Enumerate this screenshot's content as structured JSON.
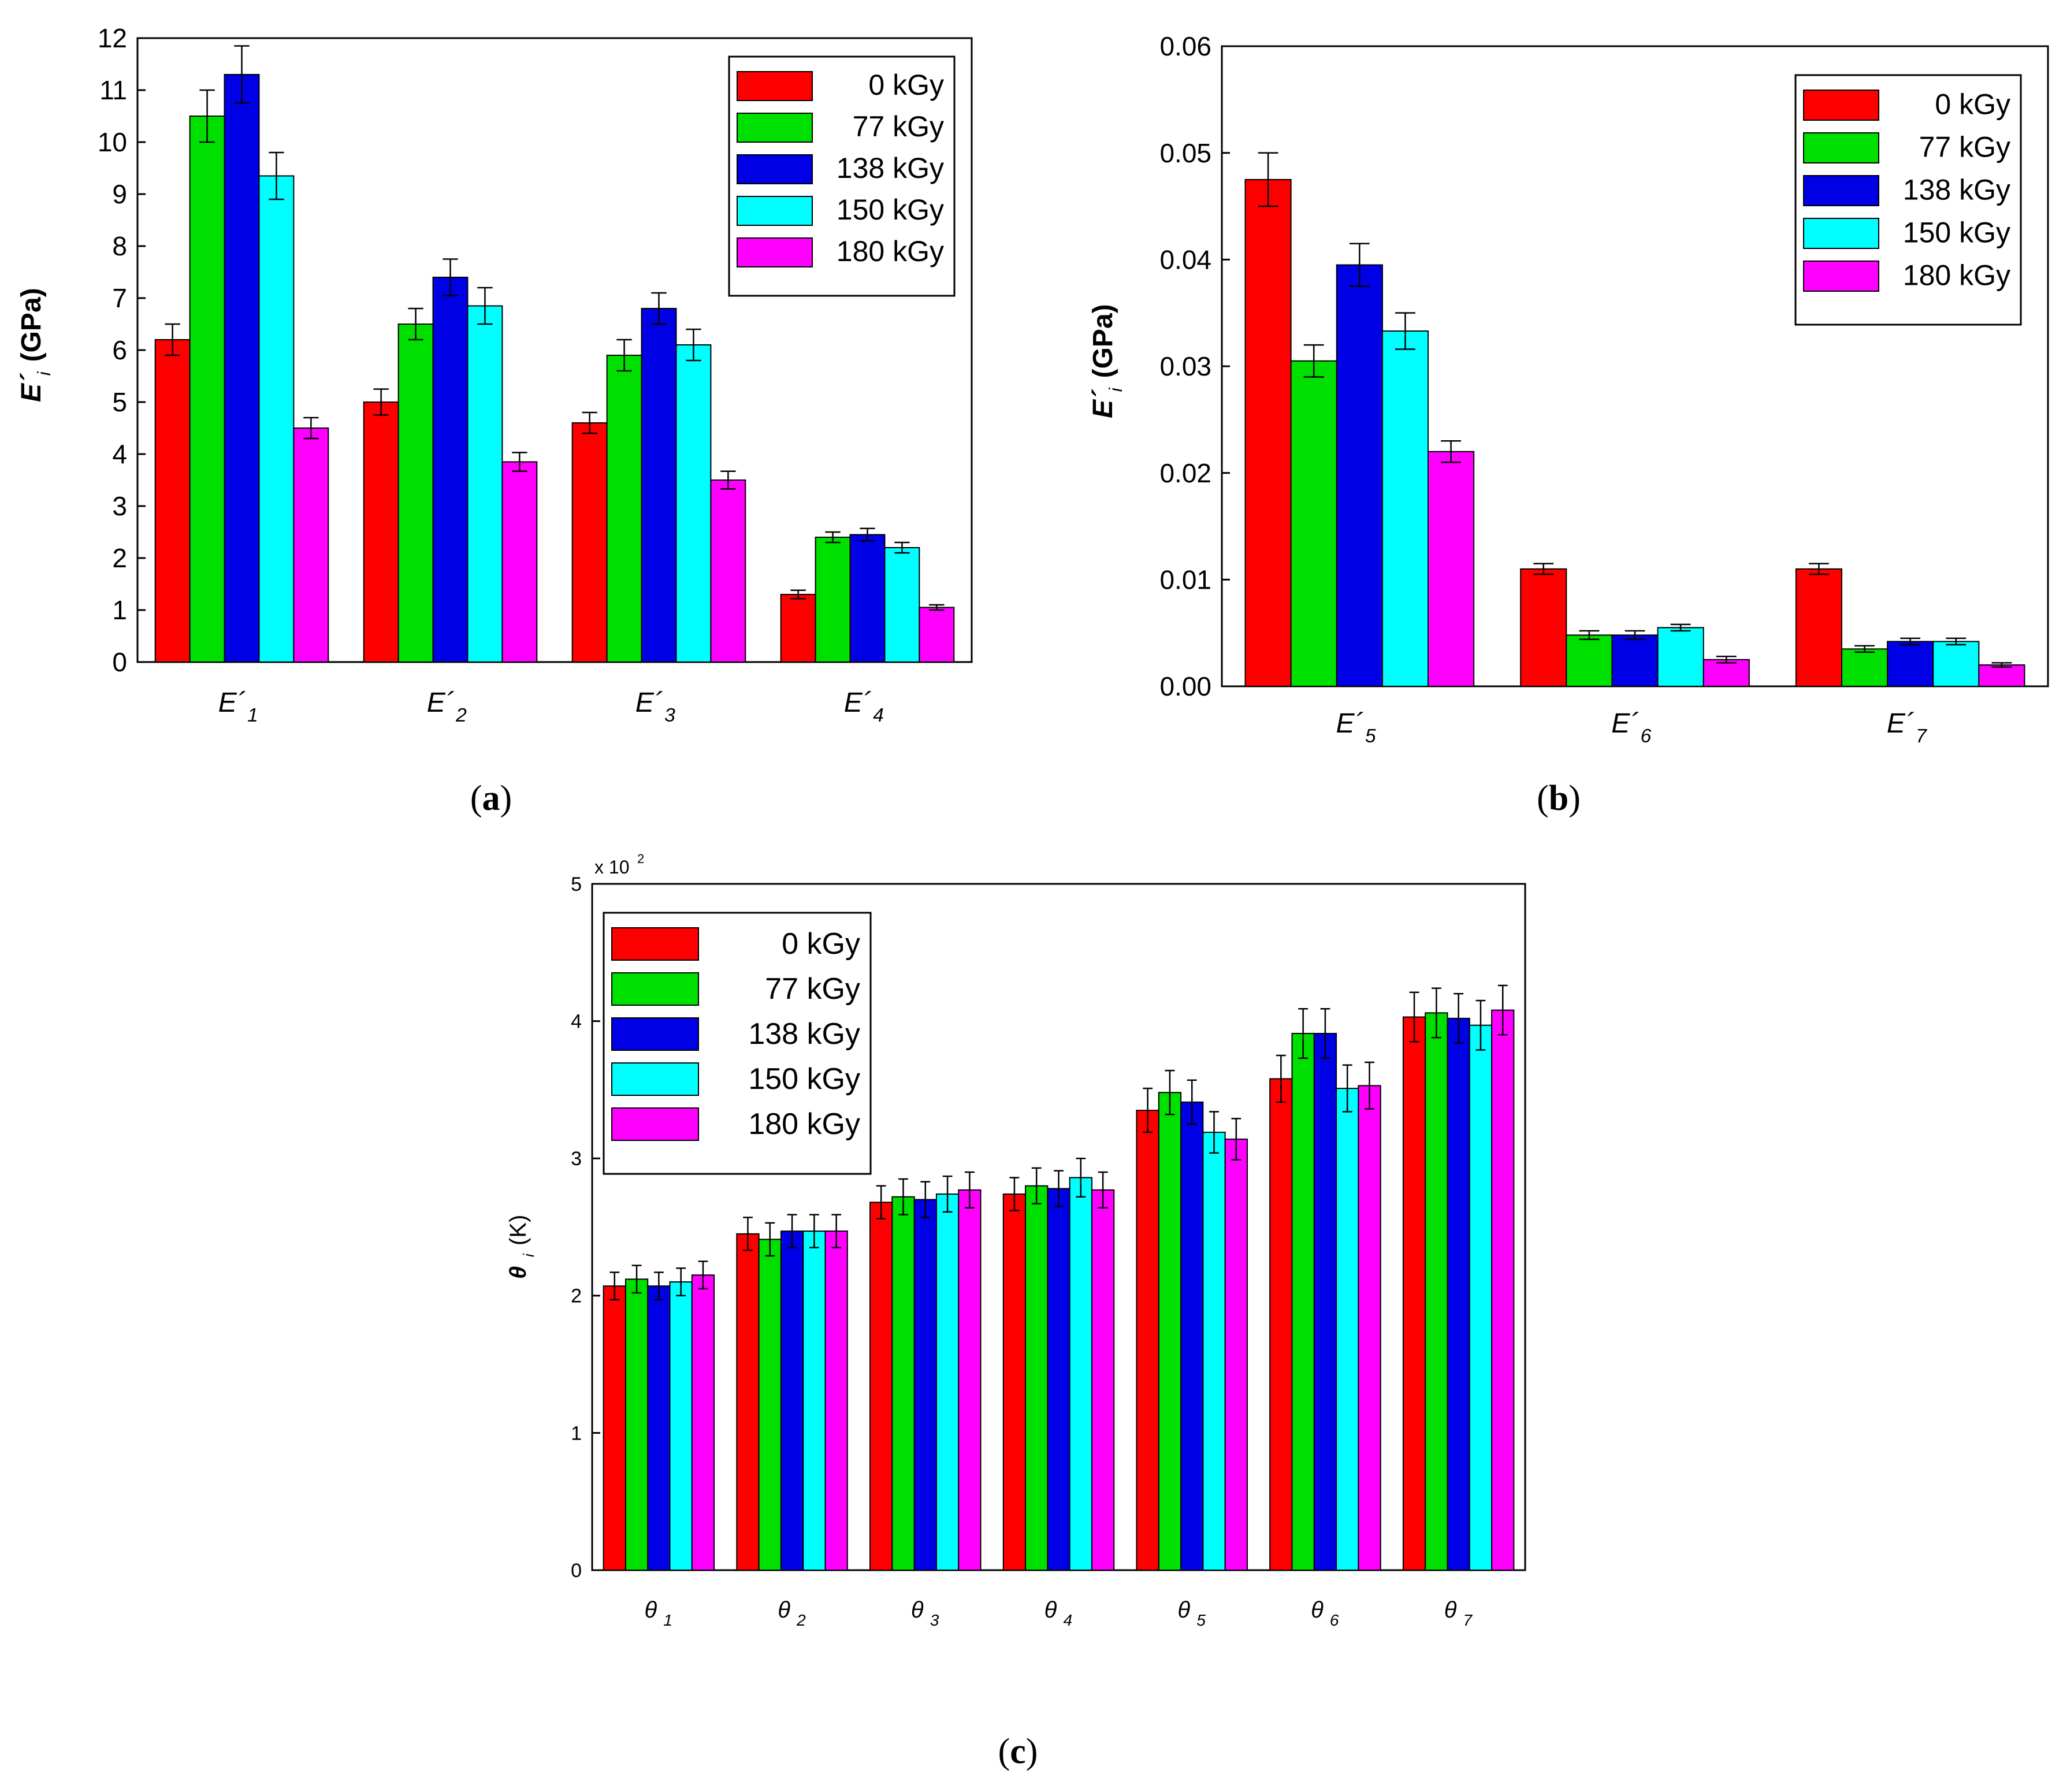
{
  "colors": {
    "series": [
      "#ff0000",
      "#00e000",
      "#0000e6",
      "#00ffff",
      "#ff00ff"
    ],
    "axis": "#000000",
    "error_bar": "#000000"
  },
  "legend_labels": [
    "0 kGy",
    "77 kGy",
    "138 kGy",
    "150 kGy",
    "180 kGy"
  ],
  "chart_data": [
    {
      "id": "a",
      "type": "bar",
      "panel_label": "a",
      "title": "",
      "ylabel_main": "E´",
      "ylabel_sub": "i",
      "ylabel_unit": "(GPa)",
      "xlabel": "",
      "ylim": [
        0,
        12
      ],
      "yticks": [
        "0",
        "1",
        "2",
        "3",
        "4",
        "5",
        "6",
        "7",
        "8",
        "9",
        "10",
        "11",
        "12"
      ],
      "categories": [
        {
          "main": "E´",
          "sub": "1"
        },
        {
          "main": "E´",
          "sub": "2"
        },
        {
          "main": "E´",
          "sub": "3"
        },
        {
          "main": "E´",
          "sub": "4"
        }
      ],
      "legend_position": "top-right",
      "series": [
        {
          "name": "0 kGy",
          "values": [
            6.2,
            5.0,
            4.6,
            1.3
          ],
          "errors": [
            0.3,
            0.25,
            0.2,
            0.08
          ]
        },
        {
          "name": "77 kGy",
          "values": [
            10.5,
            6.5,
            5.9,
            2.4
          ],
          "errors": [
            0.5,
            0.3,
            0.3,
            0.1
          ]
        },
        {
          "name": "138 kGy",
          "values": [
            11.3,
            7.4,
            6.8,
            2.45
          ],
          "errors": [
            0.55,
            0.35,
            0.3,
            0.12
          ]
        },
        {
          "name": "150 kGy",
          "values": [
            9.35,
            6.85,
            6.1,
            2.2
          ],
          "errors": [
            0.45,
            0.35,
            0.3,
            0.1
          ]
        },
        {
          "name": "180 kGy",
          "values": [
            4.5,
            3.85,
            3.5,
            1.05
          ],
          "errors": [
            0.2,
            0.18,
            0.17,
            0.05
          ]
        }
      ]
    },
    {
      "id": "b",
      "type": "bar",
      "panel_label": "b",
      "title": "",
      "ylabel_main": "E´",
      "ylabel_sub": "i",
      "ylabel_unit": "(GPa)",
      "xlabel": "",
      "ylim": [
        0,
        0.06
      ],
      "yticks": [
        "0.00",
        "0.01",
        "0.02",
        "0.03",
        "0.04",
        "0.05",
        "0.06"
      ],
      "categories": [
        {
          "main": "E´",
          "sub": "5"
        },
        {
          "main": "E´",
          "sub": "6"
        },
        {
          "main": "E´",
          "sub": "7"
        }
      ],
      "legend_position": "top-right",
      "series": [
        {
          "name": "0 kGy",
          "values": [
            0.0475,
            0.011,
            0.011
          ],
          "errors": [
            0.0025,
            0.0005,
            0.0005
          ]
        },
        {
          "name": "77 kGy",
          "values": [
            0.0305,
            0.0048,
            0.0035
          ],
          "errors": [
            0.0015,
            0.0004,
            0.0003
          ]
        },
        {
          "name": "138 kGy",
          "values": [
            0.0395,
            0.0048,
            0.0042
          ],
          "errors": [
            0.002,
            0.0004,
            0.0003
          ]
        },
        {
          "name": "150 kGy",
          "values": [
            0.0333,
            0.0055,
            0.0042
          ],
          "errors": [
            0.0017,
            0.0003,
            0.0003
          ]
        },
        {
          "name": "180 kGy",
          "values": [
            0.022,
            0.0025,
            0.002
          ],
          "errors": [
            0.001,
            0.0003,
            0.0002
          ]
        }
      ]
    },
    {
      "id": "c",
      "type": "bar",
      "panel_label": "c",
      "title": "",
      "scale_label": "x 10",
      "scale_exponent": "2",
      "ylabel_main": "θ",
      "ylabel_sub": "i",
      "ylabel_unit": "(K)",
      "xlabel": "",
      "ylim": [
        0,
        5
      ],
      "yticks": [
        "0",
        "1",
        "2",
        "3",
        "4",
        "5"
      ],
      "categories": [
        {
          "main": "θ",
          "sub": "1"
        },
        {
          "main": "θ",
          "sub": "2"
        },
        {
          "main": "θ",
          "sub": "3"
        },
        {
          "main": "θ",
          "sub": "4"
        },
        {
          "main": "θ",
          "sub": "5"
        },
        {
          "main": "θ",
          "sub": "6"
        },
        {
          "main": "θ",
          "sub": "7"
        }
      ],
      "legend_position": "top-left",
      "series": [
        {
          "name": "0 kGy",
          "values": [
            2.07,
            2.45,
            2.68,
            2.74,
            3.35,
            3.58,
            4.03
          ],
          "errors": [
            0.1,
            0.12,
            0.12,
            0.12,
            0.16,
            0.17,
            0.18
          ]
        },
        {
          "name": "77 kGy",
          "values": [
            2.12,
            2.41,
            2.72,
            2.8,
            3.48,
            3.91,
            4.06
          ],
          "errors": [
            0.1,
            0.12,
            0.13,
            0.13,
            0.16,
            0.18,
            0.18
          ]
        },
        {
          "name": "138 kGy",
          "values": [
            2.07,
            2.47,
            2.7,
            2.78,
            3.41,
            3.91,
            4.02
          ],
          "errors": [
            0.1,
            0.12,
            0.13,
            0.13,
            0.16,
            0.18,
            0.18
          ]
        },
        {
          "name": "150 kGy",
          "values": [
            2.1,
            2.47,
            2.74,
            2.86,
            3.19,
            3.51,
            3.97
          ],
          "errors": [
            0.1,
            0.12,
            0.13,
            0.14,
            0.15,
            0.17,
            0.18
          ]
        },
        {
          "name": "180 kGy",
          "values": [
            2.15,
            2.47,
            2.77,
            2.77,
            3.14,
            3.53,
            4.08
          ],
          "errors": [
            0.1,
            0.12,
            0.13,
            0.13,
            0.15,
            0.17,
            0.18
          ]
        }
      ]
    }
  ]
}
